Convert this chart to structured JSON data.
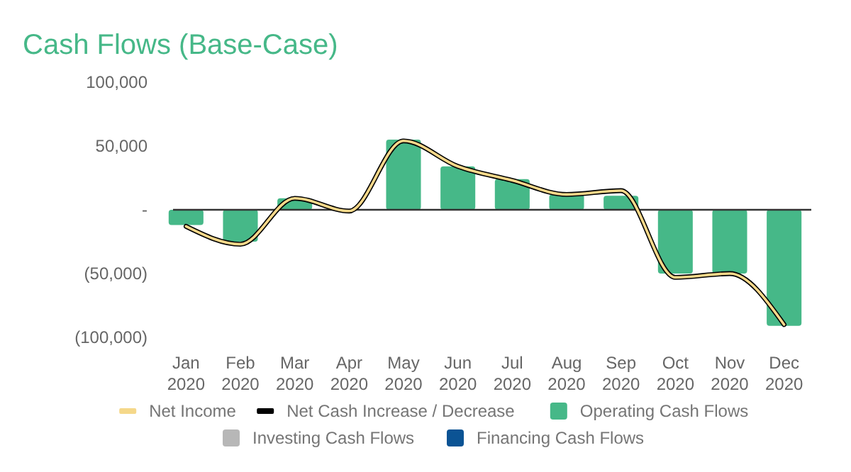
{
  "chart_data": {
    "type": "bar",
    "title": "Cash Flows (Base-Case)",
    "categories": [
      "Jan\n2020",
      "Feb\n2020",
      "Mar\n2020",
      "Apr\n2020",
      "May\n2020",
      "Jun\n2020",
      "Jul\n2020",
      "Aug\n2020",
      "Sep\n2020",
      "Oct\n2020",
      "Nov\n2020",
      "Dec\n2020"
    ],
    "series": [
      {
        "name": "Net Income",
        "type": "line",
        "color": "#f5d88a",
        "values": [
          -13000,
          -27000,
          9000,
          -1000,
          54000,
          34000,
          23000,
          12000,
          15000,
          -53000,
          -50000,
          -90000
        ]
      },
      {
        "name": "Net Cash Increase / Decrease",
        "type": "line",
        "color": "#000000",
        "values": [
          -13000,
          -27000,
          9000,
          -1000,
          54000,
          34000,
          23000,
          12000,
          15000,
          -53000,
          -50000,
          -90000
        ]
      },
      {
        "name": "Operating Cash Flows",
        "type": "bar",
        "color": "#46b888",
        "values": [
          -12000,
          -25000,
          9000,
          0,
          55000,
          34000,
          24000,
          12000,
          11000,
          -50000,
          -50000,
          -91000
        ]
      },
      {
        "name": "Investing Cash Flows",
        "type": "bar",
        "color": "#b7b7b7",
        "values": [
          0,
          0,
          0,
          0,
          0,
          0,
          0,
          0,
          0,
          0,
          0,
          0
        ]
      },
      {
        "name": "Financing Cash Flows",
        "type": "bar",
        "color": "#0b5394",
        "values": [
          0,
          0,
          0,
          0,
          0,
          0,
          0,
          0,
          0,
          0,
          0,
          0
        ]
      }
    ],
    "stacked": true,
    "ylim": [
      -100000,
      100000
    ],
    "yticks": [
      {
        "value": 100000,
        "label": "100,000"
      },
      {
        "value": 50000,
        "label": "50,000"
      },
      {
        "value": 0,
        "label": "-"
      },
      {
        "value": -50000,
        "label": "(50,000)"
      },
      {
        "value": -100000,
        "label": "(100,000)"
      }
    ],
    "ref_lines": [
      {
        "axis": "y",
        "value": 0,
        "color": "#333333"
      }
    ],
    "legend": "bottom"
  }
}
